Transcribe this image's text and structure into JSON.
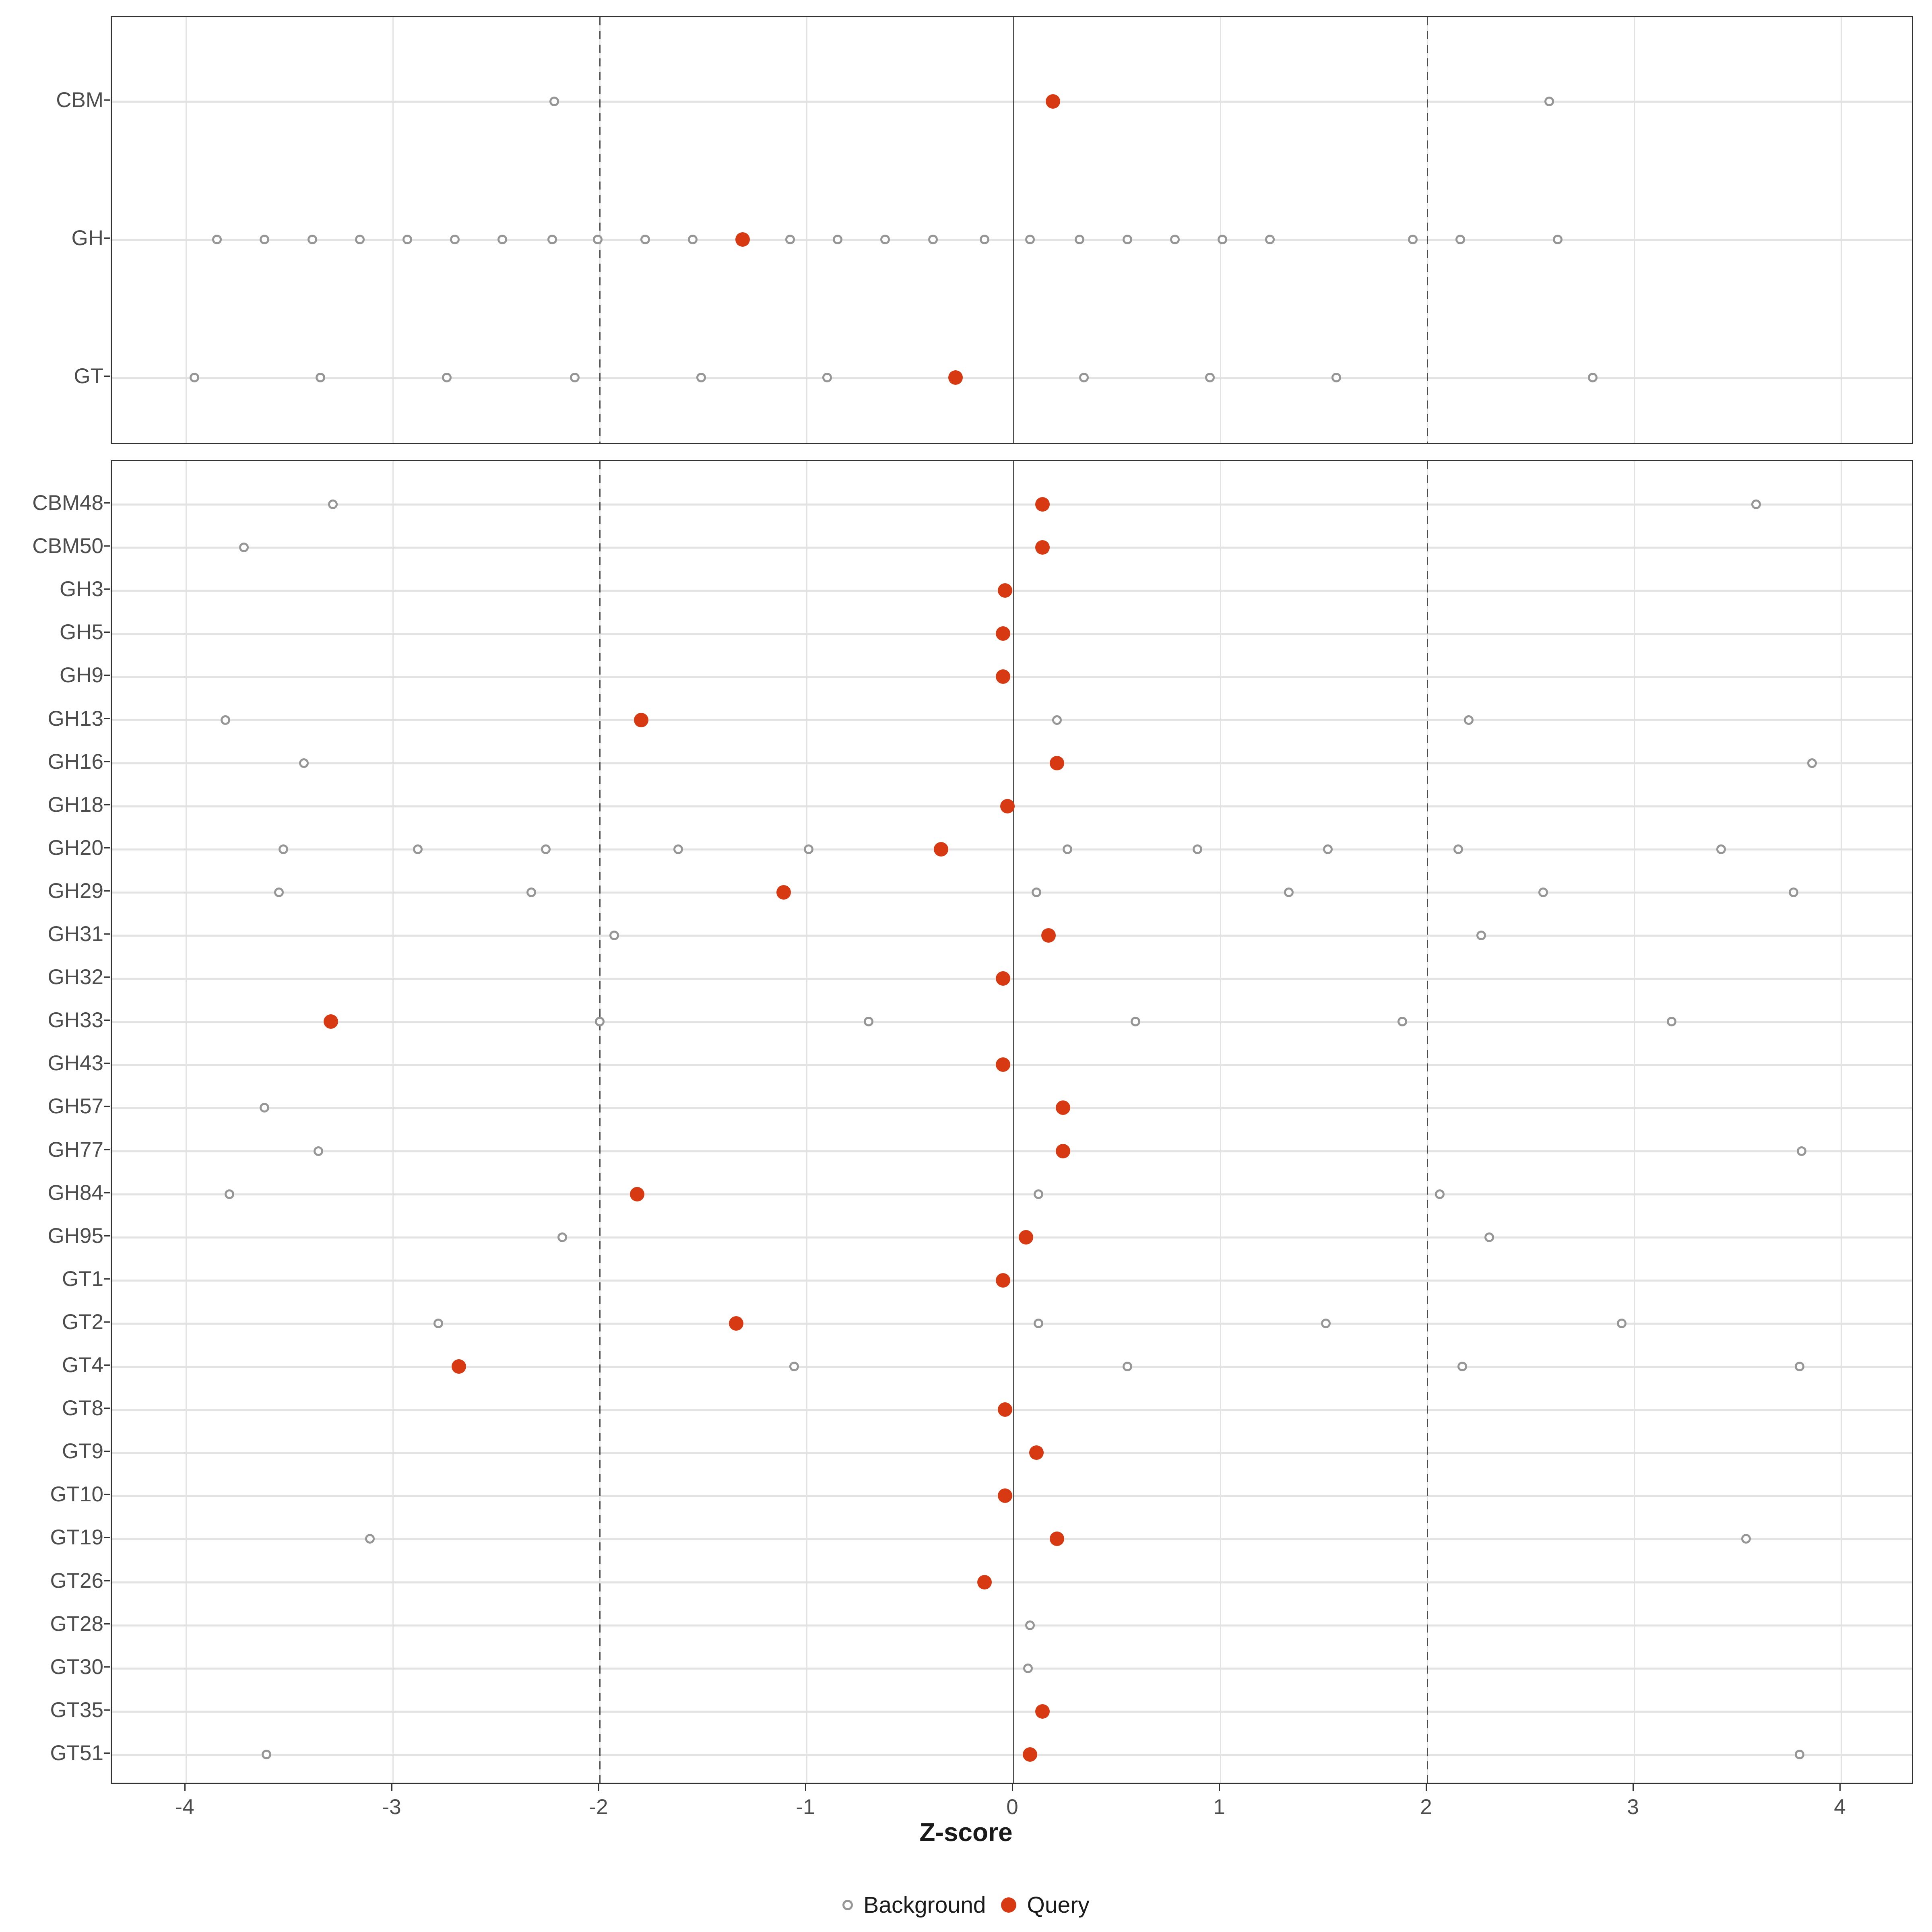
{
  "chart_data": {
    "type": "scatter",
    "title": "",
    "xlabel": "Z-score",
    "x_ticks": [
      -4,
      -3,
      -2,
      -1,
      0,
      1,
      2,
      3,
      4
    ],
    "xlim": [
      -4.45,
      4.38
    ],
    "grid": true,
    "legend_position": "bottom",
    "reference_lines": {
      "solid": [
        0
      ],
      "dashed": [
        -2,
        2
      ]
    },
    "legend": [
      {
        "label": "Background",
        "marker": "open-circle"
      },
      {
        "label": "Query",
        "marker": "filled-circle"
      }
    ],
    "colors": {
      "query": "#D73A12",
      "background_stroke": "#969696",
      "grid": "#E3E3E3",
      "reference": "#4D4D4D",
      "panel_border": "#333333",
      "axis_text": "#4D4D4D",
      "title_text": "#1A1A1A"
    },
    "panels": [
      {
        "id": "summary",
        "rows": [
          {
            "label": "CBM",
            "query": 0.19,
            "background": [
              -2.22,
              2.59
            ]
          },
          {
            "label": "GH",
            "query": -1.31,
            "background": [
              -3.85,
              -3.62,
              -3.39,
              -3.16,
              -2.93,
              -2.7,
              -2.47,
              -2.23,
              -2.01,
              -1.78,
              -1.55,
              -1.08,
              -0.85,
              -0.62,
              -0.39,
              -0.14,
              0.08,
              0.32,
              0.55,
              0.78,
              1.01,
              1.24,
              1.93,
              2.16,
              2.63
            ]
          },
          {
            "label": "GT",
            "query": -0.28,
            "background": [
              -3.96,
              -3.35,
              -2.74,
              -2.12,
              -1.51,
              -0.9,
              0.34,
              0.95,
              1.56,
              2.8
            ]
          }
        ]
      },
      {
        "id": "families",
        "rows": [
          {
            "label": "CBM48",
            "query": 0.14,
            "background": [
              -3.29,
              3.59
            ]
          },
          {
            "label": "CBM50",
            "query": 0.14,
            "background": [
              -3.72
            ]
          },
          {
            "label": "GH3",
            "query": -0.04,
            "background": []
          },
          {
            "label": "GH5",
            "query": -0.05,
            "background": []
          },
          {
            "label": "GH9",
            "query": -0.05,
            "background": []
          },
          {
            "label": "GH13",
            "query": -1.8,
            "background": [
              -3.81,
              0.21,
              2.2
            ]
          },
          {
            "label": "GH16",
            "query": 0.21,
            "background": [
              -3.43,
              3.86
            ]
          },
          {
            "label": "GH18",
            "query": -0.03,
            "background": []
          },
          {
            "label": "GH20",
            "query": -0.35,
            "background": [
              -3.53,
              -2.88,
              -2.26,
              -1.62,
              -0.99,
              0.26,
              0.89,
              1.52,
              2.15,
              3.42
            ]
          },
          {
            "label": "GH29",
            "query": -1.11,
            "background": [
              -3.55,
              -2.33,
              0.11,
              1.33,
              2.56,
              3.77
            ]
          },
          {
            "label": "GH31",
            "query": 0.17,
            "background": [
              -1.93,
              2.26
            ]
          },
          {
            "label": "GH32",
            "query": -0.05,
            "background": []
          },
          {
            "label": "GH33",
            "query": -3.3,
            "background": [
              -2.0,
              -0.7,
              0.59,
              1.88,
              3.18
            ]
          },
          {
            "label": "GH43",
            "query": -0.05,
            "background": []
          },
          {
            "label": "GH57",
            "query": 0.24,
            "background": [
              -3.62
            ]
          },
          {
            "label": "GH77",
            "query": 0.24,
            "background": [
              -3.36,
              3.81
            ]
          },
          {
            "label": "GH84",
            "query": -1.82,
            "background": [
              -3.79,
              0.12,
              2.06
            ]
          },
          {
            "label": "GH95",
            "query": 0.06,
            "background": [
              -2.18,
              2.3
            ]
          },
          {
            "label": "GT1",
            "query": -0.05,
            "background": []
          },
          {
            "label": "GT2",
            "query": -1.34,
            "background": [
              -2.78,
              0.12,
              1.51,
              2.94
            ]
          },
          {
            "label": "GT4",
            "query": -2.68,
            "background": [
              -1.06,
              0.55,
              2.17,
              3.8
            ]
          },
          {
            "label": "GT8",
            "query": -0.04,
            "background": []
          },
          {
            "label": "GT9",
            "query": 0.11,
            "background": []
          },
          {
            "label": "GT10",
            "query": -0.04,
            "background": []
          },
          {
            "label": "GT19",
            "query": 0.21,
            "background": [
              -3.11,
              3.54
            ]
          },
          {
            "label": "GT26",
            "query": -0.14,
            "background": []
          },
          {
            "label": "GT28",
            "query": null,
            "background": [
              0.08
            ]
          },
          {
            "label": "GT30",
            "query": null,
            "background": [
              0.07
            ]
          },
          {
            "label": "GT35",
            "query": 0.14,
            "background": []
          },
          {
            "label": "GT51",
            "query": 0.08,
            "background": [
              -3.61,
              3.8
            ]
          }
        ]
      }
    ]
  }
}
